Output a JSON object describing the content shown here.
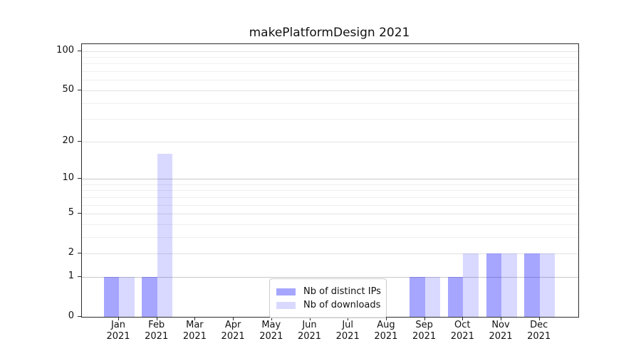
{
  "chart_data": {
    "type": "bar",
    "title": "makePlatformDesign 2021",
    "categories": [
      "Jan 2021",
      "Feb 2021",
      "Mar 2021",
      "Apr 2021",
      "May 2021",
      "Jun 2021",
      "Jul 2021",
      "Aug 2021",
      "Sep 2021",
      "Oct 2021",
      "Nov 2021",
      "Dec 2021"
    ],
    "series": [
      {
        "name": "Nb of distinct IPs",
        "color": "#0000ff",
        "alpha": 0.35,
        "values": [
          1,
          1,
          0,
          0,
          0,
          0,
          0,
          0,
          1,
          1,
          2,
          2
        ]
      },
      {
        "name": "Nb of downloads",
        "color": "#0000ff",
        "alpha": 0.15,
        "values": [
          1,
          16,
          0,
          0,
          0,
          0,
          0,
          0,
          1,
          2,
          2,
          2
        ]
      }
    ],
    "xlabel": "",
    "ylabel": "",
    "yscale": "log1p",
    "yticks": [
      0,
      1,
      2,
      5,
      10,
      20,
      50,
      100
    ],
    "ylim": [
      0,
      112.7
    ],
    "grid": "horizontal",
    "legend_position": "lower center",
    "gridline_values_strong": [
      1,
      10
    ],
    "gridline_values_medium": [
      2,
      5,
      20,
      50,
      100
    ],
    "gridline_values_faint": [
      3,
      4,
      6,
      7,
      8,
      9,
      30,
      40,
      60,
      70,
      80,
      90
    ],
    "grid_colors": {
      "strong": "#c8c8c8",
      "medium": "#e2e2e2",
      "faint": "#efefef"
    }
  }
}
